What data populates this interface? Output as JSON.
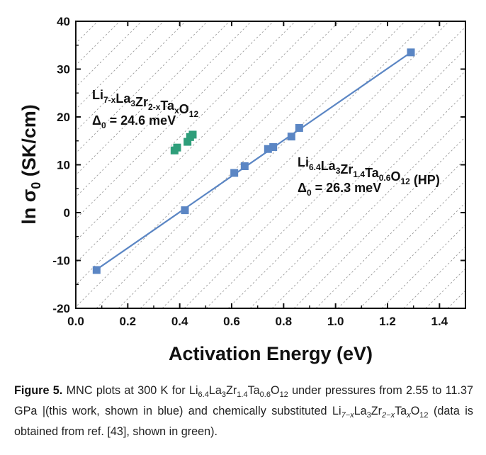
{
  "chart_data": {
    "type": "scatter",
    "xlabel": "Activation Energy (eV)",
    "ylabel": "ln σ",
    "ylabel_sub": "0",
    "ylabel_units": " (SK/cm)",
    "xlim": [
      0.0,
      1.5
    ],
    "ylim": [
      -20,
      40
    ],
    "xticks": [
      0.0,
      0.2,
      0.4,
      0.6,
      0.8,
      1.0,
      1.2,
      1.4
    ],
    "yticks": [
      -20,
      -10,
      0,
      10,
      20,
      30,
      40
    ],
    "grid": false,
    "background_pattern": "diagonal dashed hatch",
    "series": [
      {
        "name": "Li6.4La3Zr1.4Ta0.6O12 (HP)",
        "color": "#5b86c4",
        "fit_line": true,
        "x": [
          0.08,
          0.42,
          0.61,
          0.65,
          0.74,
          0.76,
          0.83,
          0.86,
          1.29
        ],
        "y": [
          -12.0,
          0.5,
          8.3,
          9.7,
          13.3,
          13.7,
          15.9,
          17.7,
          33.5
        ],
        "fit": {
          "x": [
            0.08,
            1.29
          ],
          "y": [
            -11.9,
            33.5
          ]
        },
        "annotation": {
          "formula": [
            {
              "t": "Li",
              "s": null
            },
            {
              "t": "6.4",
              "s": "sub"
            },
            {
              "t": "La",
              "s": null
            },
            {
              "t": "3",
              "s": "sub"
            },
            {
              "t": "Zr",
              "s": null
            },
            {
              "t": "1.4",
              "s": "sub"
            },
            {
              "t": "Ta",
              "s": null
            },
            {
              "t": "0.6",
              "s": "sub"
            },
            {
              "t": "O",
              "s": null
            },
            {
              "t": "12",
              "s": "sub"
            },
            {
              "t": " (HP)",
              "s": null
            }
          ],
          "delta_symbol": "Δ",
          "delta_sub": "0",
          "delta_value": " = 26.3 meV"
        }
      },
      {
        "name": "Li7-xLa3Zr2-xTaxO12",
        "color": "#2e9e7a",
        "fit_line": false,
        "x": [
          0.38,
          0.39,
          0.43,
          0.44,
          0.45
        ],
        "y": [
          13.0,
          13.6,
          14.8,
          15.8,
          16.3
        ],
        "annotation": {
          "formula": [
            {
              "t": "Li",
              "s": null
            },
            {
              "t": "7-x",
              "s": "sub"
            },
            {
              "t": "La",
              "s": null
            },
            {
              "t": "3",
              "s": "sub"
            },
            {
              "t": "Zr",
              "s": null
            },
            {
              "t": "2-x",
              "s": "sub"
            },
            {
              "t": "Ta",
              "s": null
            },
            {
              "t": "x",
              "s": "sub"
            },
            {
              "t": "O",
              "s": null
            },
            {
              "t": "12",
              "s": "sub"
            }
          ],
          "delta_symbol": "Δ",
          "delta_sub": "0",
          "delta_value": " = 24.6 meV"
        }
      }
    ]
  },
  "caption": {
    "label": "Figure 5.",
    "text_1": " MNC plots at 300 K for ",
    "formula_1": [
      {
        "t": "Li",
        "s": null
      },
      {
        "t": "6.4",
        "s": "sub"
      },
      {
        "t": "La",
        "s": null
      },
      {
        "t": "3",
        "s": "sub"
      },
      {
        "t": "Zr",
        "s": null
      },
      {
        "t": "1.4",
        "s": "sub"
      },
      {
        "t": "Ta",
        "s": null
      },
      {
        "t": "0.6",
        "s": "sub"
      },
      {
        "t": "O",
        "s": null
      },
      {
        "t": "12",
        "s": "sub"
      }
    ],
    "text_2": " under pressures from 2.55 to 11.37 GPa |(this work, shown in blue) and chemically substituted ",
    "formula_2": [
      {
        "t": "Li",
        "s": null
      },
      {
        "t": "7−x",
        "s": "sub"
      },
      {
        "t": "La",
        "s": null
      },
      {
        "t": "3",
        "s": "sub"
      },
      {
        "t": "Zr",
        "s": null
      },
      {
        "t": "2−x",
        "s": "sub"
      },
      {
        "t": "Ta",
        "s": null
      },
      {
        "t": "x",
        "s": "sub"
      },
      {
        "t": "O",
        "s": null
      },
      {
        "t": "12",
        "s": "sub"
      }
    ],
    "text_3": " (data is obtained from ref. [43], shown in green)."
  }
}
